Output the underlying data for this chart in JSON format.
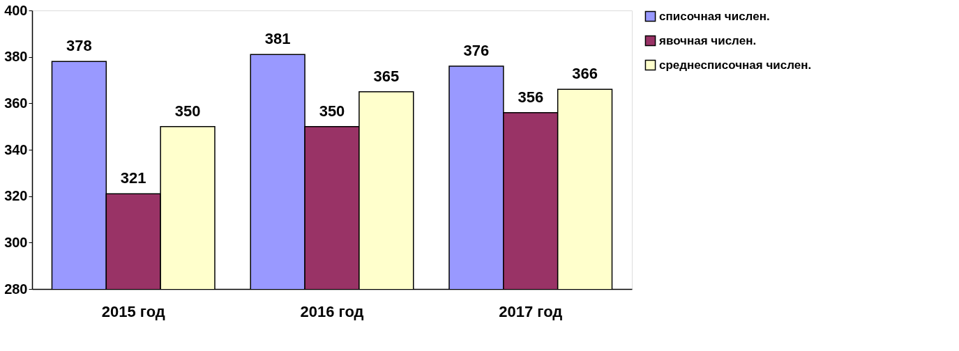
{
  "chart_data": {
    "type": "bar",
    "categories": [
      "2015 год",
      "2016 год",
      "2017 год"
    ],
    "series": [
      {
        "name": "списочная числен.",
        "color": "#9999ff",
        "values": [
          378,
          381,
          376
        ]
      },
      {
        "name": "явочная числен.",
        "color": "#993366",
        "values": [
          321,
          350,
          356
        ]
      },
      {
        "name": "среднесписочная числен.",
        "color": "#ffffcc",
        "values": [
          350,
          365,
          366
        ]
      }
    ],
    "ylim": [
      280,
      400
    ],
    "yticks": [
      280,
      300,
      320,
      340,
      360,
      380,
      400
    ],
    "grid": false,
    "legend": "right",
    "data_labels": true
  }
}
